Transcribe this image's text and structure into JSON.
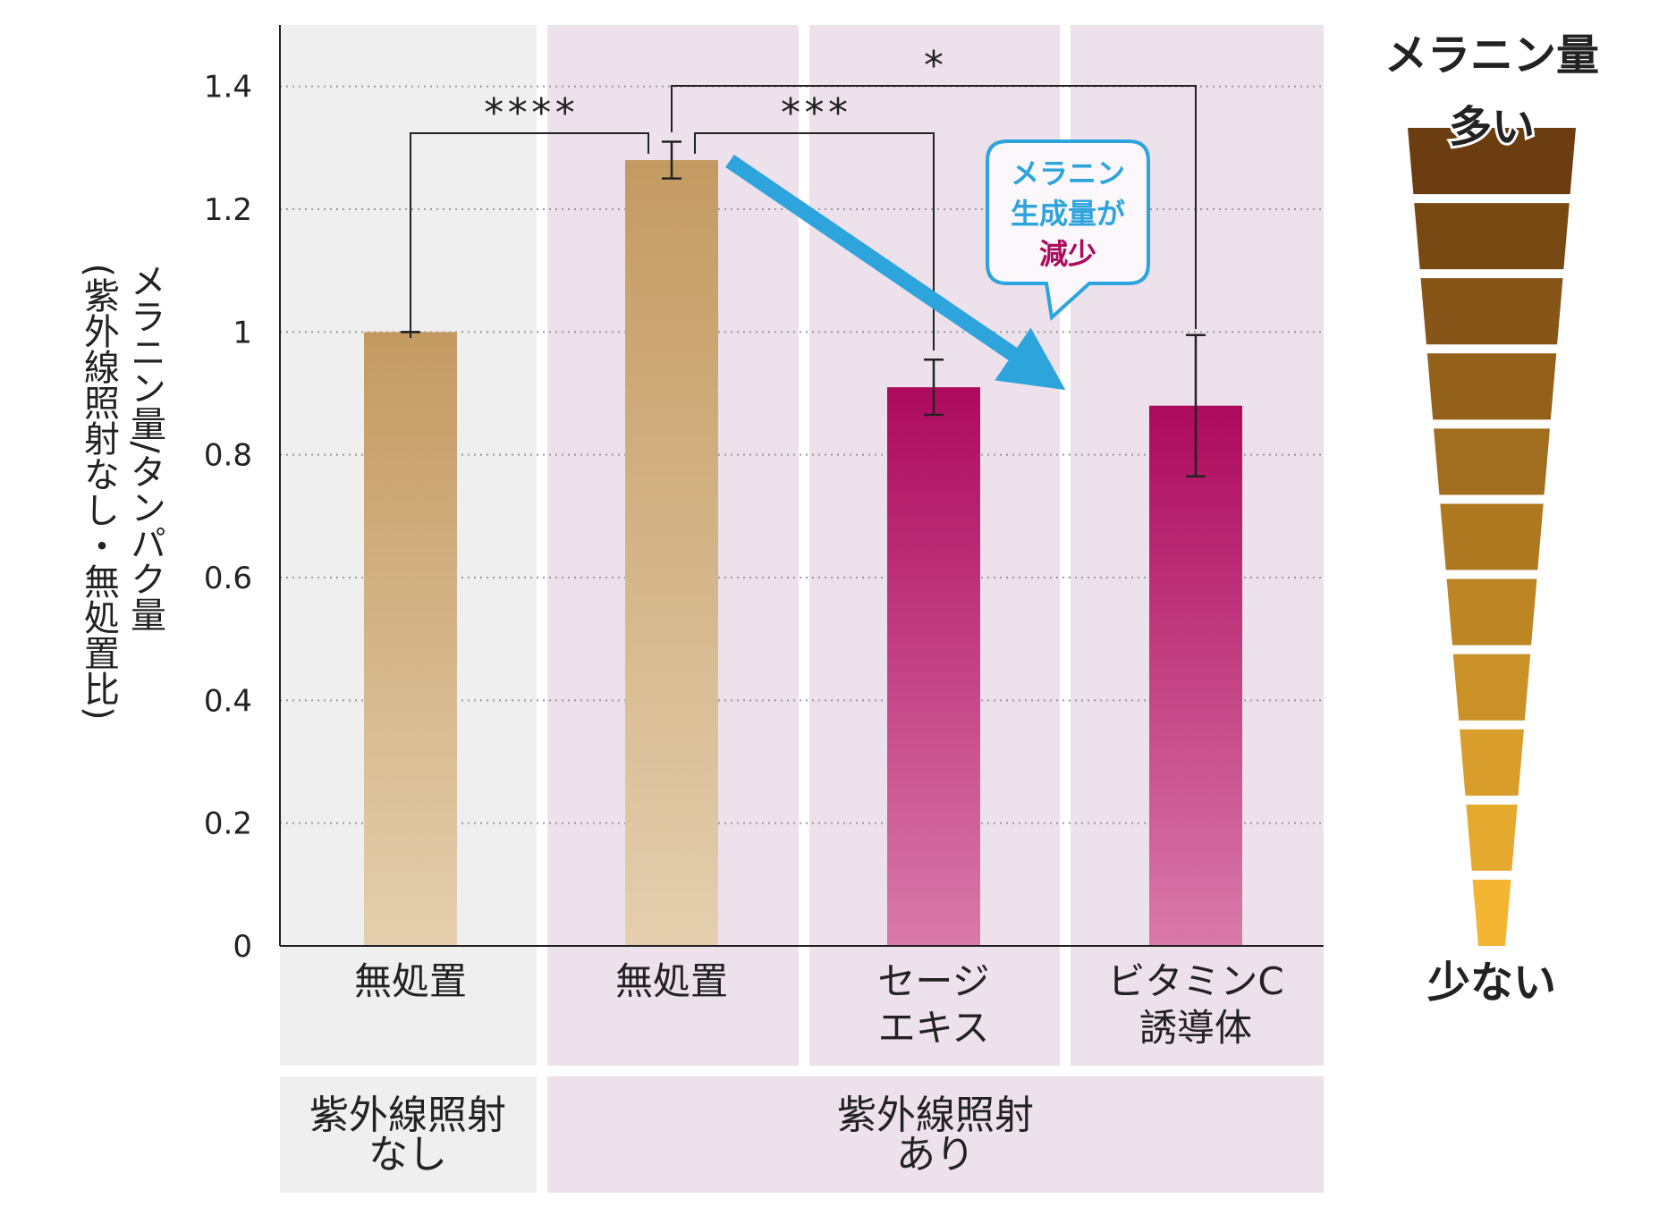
{
  "chart_data": {
    "type": "bar",
    "ylabel_main": "メラニン量/タンパク量",
    "ylabel_sub": "(紫外線照射なし・無処置比)",
    "ylim": [
      0,
      1.5
    ],
    "yticks": [
      0,
      0.2,
      0.4,
      0.6,
      0.8,
      1,
      1.2,
      1.4
    ],
    "ytick_labels": [
      "0",
      "0.2",
      "0.4",
      "0.6",
      "0.8",
      "1",
      "1.2",
      "1.4"
    ],
    "grid": "horizontal-dotted",
    "categories": [
      {
        "lines": [
          "無処置"
        ],
        "value": 1.0,
        "error": 0.0,
        "color": "tan"
      },
      {
        "lines": [
          "無処置"
        ],
        "value": 1.28,
        "error": 0.03,
        "color": "tan"
      },
      {
        "lines": [
          "セージ",
          "エキス"
        ],
        "value": 0.91,
        "error": 0.045,
        "color": "magenta"
      },
      {
        "lines": [
          "ビタミンC",
          "誘導体"
        ],
        "value": 0.88,
        "error": 0.115,
        "color": "magenta"
      }
    ],
    "groups": [
      {
        "lines": [
          "紫外線照射",
          "なし"
        ],
        "span": [
          0,
          0
        ]
      },
      {
        "lines": [
          "紫外線照射",
          "あり"
        ],
        "span": [
          1,
          3
        ]
      }
    ],
    "significance": [
      {
        "from": 0,
        "to": 1,
        "label": "****"
      },
      {
        "from": 1,
        "to": 2,
        "label": "***"
      },
      {
        "from": 1,
        "to": 3,
        "label": "*"
      }
    ],
    "callout": {
      "line1": "メラニン",
      "line2": "生成量が",
      "line3": "減少"
    },
    "scale": {
      "title": "メラニン量",
      "top_label": "多い",
      "bottom_label": "少ない"
    }
  },
  "colors": {
    "tan_top": "#c49a62",
    "tan_bottom": "#e4cfae",
    "magenta_top": "#ad0a5d",
    "magenta_bottom": "#d97aaa",
    "panel_gray": "#efefef",
    "panel_pink": "#ede1ec",
    "arrow": "#2ea4dc",
    "callout_cyan": "#2ea4dc",
    "callout_magenta": "#ad0a5d",
    "scale_dark": "#6b3d10",
    "scale_light": "#f3b532"
  }
}
